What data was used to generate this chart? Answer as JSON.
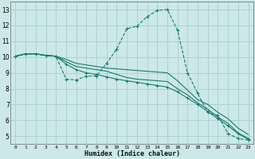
{
  "xlabel": "Humidex (Indice chaleur)",
  "xlim": [
    -0.5,
    23.5
  ],
  "ylim": [
    4.5,
    13.5
  ],
  "yticks": [
    5,
    6,
    7,
    8,
    9,
    10,
    11,
    12,
    13
  ],
  "xticks": [
    0,
    1,
    2,
    3,
    4,
    5,
    6,
    7,
    8,
    9,
    10,
    11,
    12,
    13,
    14,
    15,
    16,
    17,
    18,
    19,
    20,
    21,
    22,
    23
  ],
  "bg_color": "#cce8e8",
  "grid_color": "#aacece",
  "line_color": "#1a7a6e",
  "lines": [
    {
      "x": [
        0,
        1,
        2,
        3,
        4,
        5,
        6,
        7,
        8,
        9,
        10,
        11,
        12,
        13,
        14,
        15,
        16,
        17,
        18,
        19,
        20,
        21,
        22,
        23
      ],
      "y": [
        10.05,
        10.2,
        10.2,
        10.1,
        10.05,
        8.6,
        8.55,
        8.8,
        8.8,
        9.6,
        10.5,
        11.8,
        11.95,
        12.55,
        12.95,
        13.0,
        11.7,
        9.0,
        7.7,
        6.5,
        6.3,
        5.15,
        4.85,
        4.75
      ],
      "style": "dashed_markers"
    },
    {
      "x": [
        0,
        1,
        2,
        3,
        4,
        5,
        6,
        7,
        8,
        9,
        10,
        11,
        12,
        13,
        14,
        15,
        16,
        17,
        18,
        19,
        20,
        21,
        22,
        23
      ],
      "y": [
        10.05,
        10.2,
        10.2,
        10.1,
        10.05,
        9.85,
        9.6,
        9.5,
        9.4,
        9.3,
        9.25,
        9.2,
        9.15,
        9.1,
        9.05,
        9.0,
        8.5,
        7.9,
        7.3,
        7.0,
        6.5,
        6.1,
        5.5,
        5.1
      ],
      "style": "solid"
    },
    {
      "x": [
        0,
        1,
        2,
        3,
        4,
        5,
        6,
        7,
        8,
        9,
        10,
        11,
        12,
        13,
        14,
        15,
        16,
        17,
        18,
        19,
        20,
        21,
        22,
        23
      ],
      "y": [
        10.05,
        10.2,
        10.2,
        10.1,
        10.05,
        9.7,
        9.4,
        9.3,
        9.2,
        9.1,
        8.9,
        8.7,
        8.6,
        8.55,
        8.5,
        8.45,
        8.0,
        7.6,
        7.1,
        6.7,
        6.2,
        5.8,
        5.2,
        4.85
      ],
      "style": "solid"
    },
    {
      "x": [
        0,
        1,
        2,
        3,
        4,
        5,
        6,
        7,
        8,
        9,
        10,
        11,
        12,
        13,
        14,
        15,
        16,
        17,
        18,
        19,
        20,
        21,
        22,
        23
      ],
      "y": [
        10.05,
        10.2,
        10.2,
        10.1,
        10.05,
        9.55,
        9.2,
        9.0,
        8.9,
        8.75,
        8.6,
        8.5,
        8.4,
        8.3,
        8.2,
        8.1,
        7.8,
        7.4,
        7.0,
        6.55,
        6.1,
        5.65,
        5.15,
        4.8
      ],
      "style": "solid_markers"
    }
  ]
}
